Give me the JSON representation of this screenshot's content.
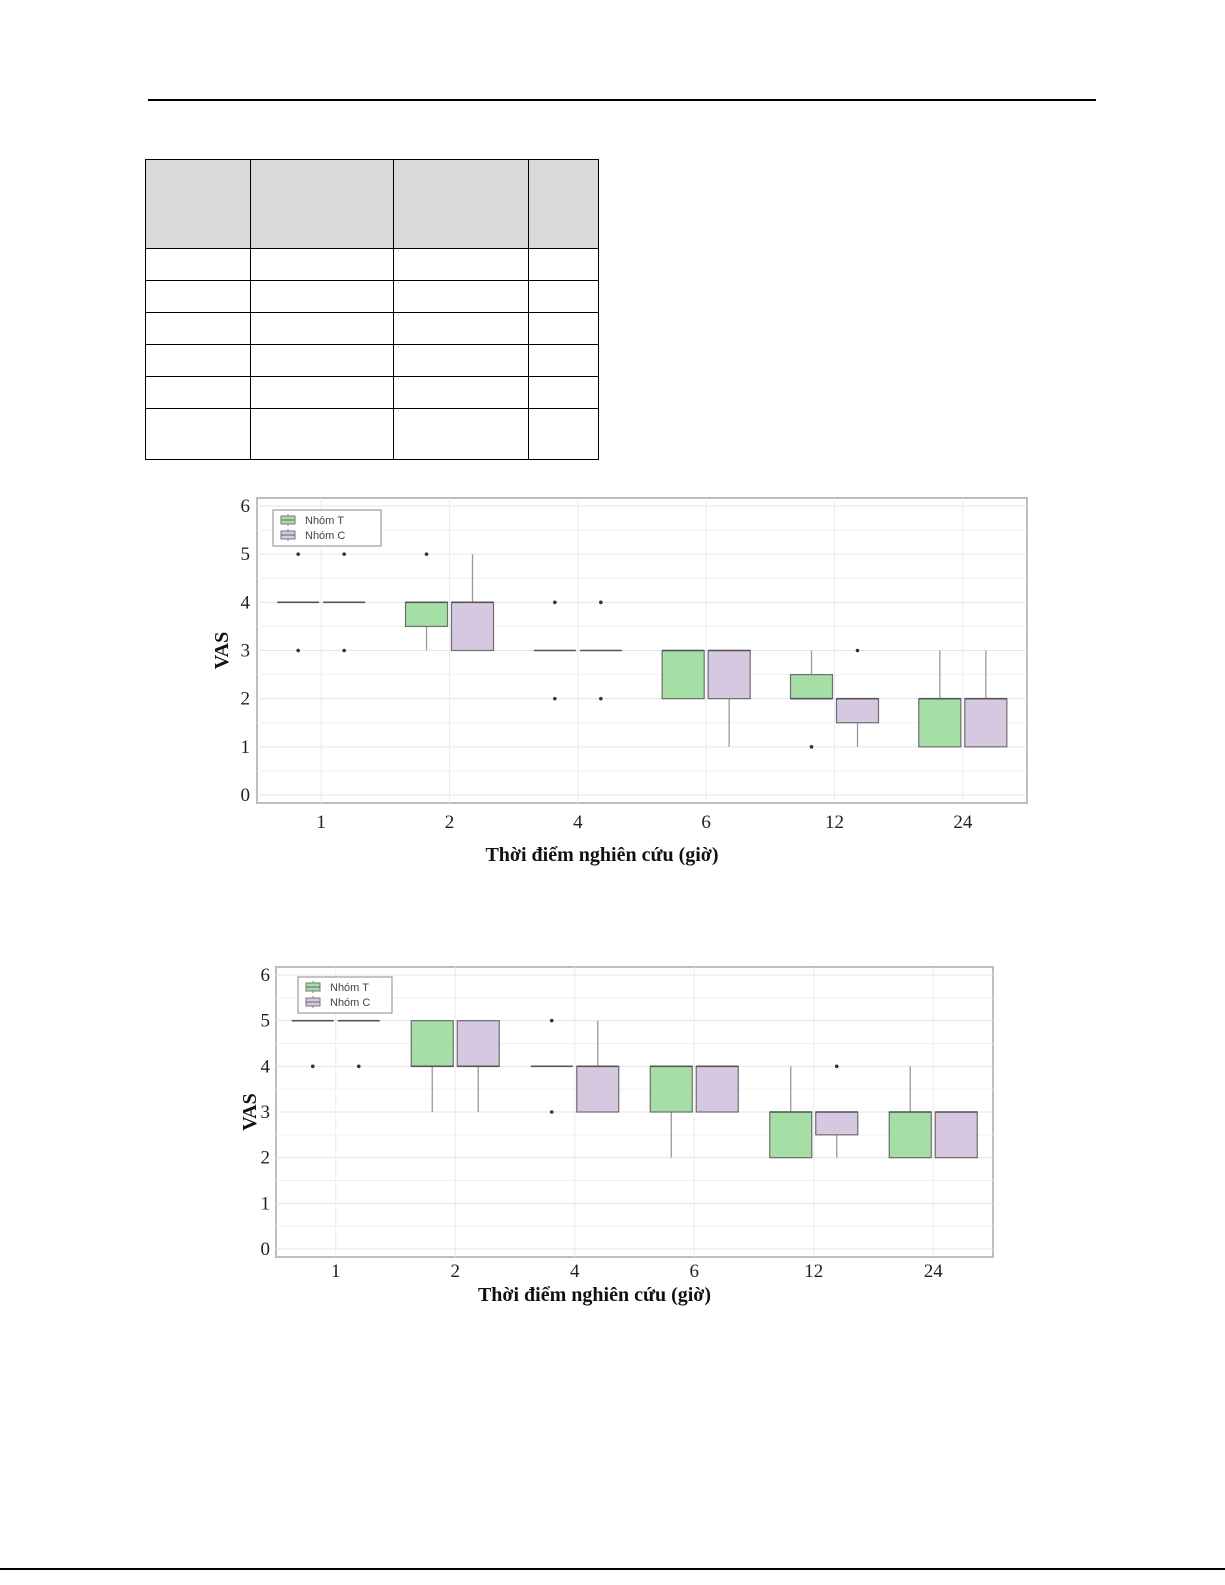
{
  "page": {
    "table": {
      "rows": 7,
      "columns": 4
    }
  },
  "chart_data": [
    {
      "type": "box",
      "categories": [
        "1",
        "2",
        "4",
        "6",
        "12",
        "24"
      ],
      "xlabel": "Thời điểm nghiên cứu (giờ)",
      "ylabel": "VAS",
      "ylim": [
        0,
        6
      ],
      "yticks": [
        "0",
        "1",
        "2",
        "3",
        "4",
        "5",
        "6"
      ],
      "grid": true,
      "legend": "top-left",
      "series": [
        {
          "name": "Nhóm T",
          "color": "#a6dfa6",
          "boxes": [
            {
              "q1": 4,
              "median": 4,
              "q3": 4,
              "low": 4,
              "high": 4,
              "outliers": [
                5,
                3
              ]
            },
            {
              "q1": 3.5,
              "median": 4,
              "q3": 4,
              "low": 3,
              "high": 4,
              "outliers": [
                5
              ]
            },
            {
              "q1": 3,
              "median": 3,
              "q3": 3,
              "low": 3,
              "high": 3,
              "outliers": [
                4,
                2
              ]
            },
            {
              "q1": 2,
              "median": 3,
              "q3": 3,
              "low": 2,
              "high": 3,
              "outliers": []
            },
            {
              "q1": 2,
              "median": 2,
              "q3": 2.5,
              "low": 2,
              "high": 3,
              "outliers": [
                1
              ]
            },
            {
              "q1": 1,
              "median": 2,
              "q3": 2,
              "low": 1,
              "high": 3,
              "outliers": []
            }
          ]
        },
        {
          "name": "Nhóm C",
          "color": "#d7c8e2",
          "boxes": [
            {
              "q1": 4,
              "median": 4,
              "q3": 4,
              "low": 4,
              "high": 4,
              "outliers": [
                5,
                3
              ]
            },
            {
              "q1": 3,
              "median": 4,
              "q3": 4,
              "low": 3,
              "high": 5,
              "outliers": []
            },
            {
              "q1": 3,
              "median": 3,
              "q3": 3,
              "low": 3,
              "high": 3,
              "outliers": [
                4,
                2
              ]
            },
            {
              "q1": 2,
              "median": 3,
              "q3": 3,
              "low": 1,
              "high": 3,
              "outliers": []
            },
            {
              "q1": 1.5,
              "median": 2,
              "q3": 2,
              "low": 1,
              "high": 2,
              "outliers": [
                3
              ]
            },
            {
              "q1": 1,
              "median": 2,
              "q3": 2,
              "low": 1,
              "high": 3,
              "outliers": []
            }
          ]
        }
      ]
    },
    {
      "type": "box",
      "categories": [
        "1",
        "2",
        "4",
        "6",
        "12",
        "24"
      ],
      "xlabel": "Thời điểm nghiên cứu (giờ)",
      "ylabel": "VAS",
      "ylim": [
        0,
        6
      ],
      "yticks": [
        "0",
        "1",
        "2",
        "3",
        "4",
        "5",
        "6"
      ],
      "grid": true,
      "legend": "top-left",
      "series": [
        {
          "name": "Nhóm T",
          "color": "#a6dfa6",
          "boxes": [
            {
              "q1": 5,
              "median": 5,
              "q3": 5,
              "low": 5,
              "high": 5,
              "outliers": [
                4
              ]
            },
            {
              "q1": 4,
              "median": 4,
              "q3": 5,
              "low": 3,
              "high": 5,
              "outliers": []
            },
            {
              "q1": 4,
              "median": 4,
              "q3": 4,
              "low": 4,
              "high": 4,
              "outliers": [
                5,
                3
              ]
            },
            {
              "q1": 3,
              "median": 4,
              "q3": 4,
              "low": 2,
              "high": 4,
              "outliers": []
            },
            {
              "q1": 2,
              "median": 3,
              "q3": 3,
              "low": 2,
              "high": 4,
              "outliers": []
            },
            {
              "q1": 2,
              "median": 3,
              "q3": 3,
              "low": 2,
              "high": 4,
              "outliers": []
            }
          ]
        },
        {
          "name": "Nhóm C",
          "color": "#d7c8e2",
          "boxes": [
            {
              "q1": 5,
              "median": 5,
              "q3": 5,
              "low": 5,
              "high": 5,
              "outliers": [
                4
              ]
            },
            {
              "q1": 4,
              "median": 4,
              "q3": 5,
              "low": 3,
              "high": 5,
              "outliers": []
            },
            {
              "q1": 3,
              "median": 4,
              "q3": 4,
              "low": 3,
              "high": 5,
              "outliers": []
            },
            {
              "q1": 3,
              "median": 4,
              "q3": 4,
              "low": 3,
              "high": 4,
              "outliers": []
            },
            {
              "q1": 2.5,
              "median": 3,
              "q3": 3,
              "low": 2,
              "high": 3,
              "outliers": [
                4
              ]
            },
            {
              "q1": 2,
              "median": 3,
              "q3": 3,
              "low": 2,
              "high": 3,
              "outliers": []
            }
          ]
        }
      ]
    }
  ]
}
